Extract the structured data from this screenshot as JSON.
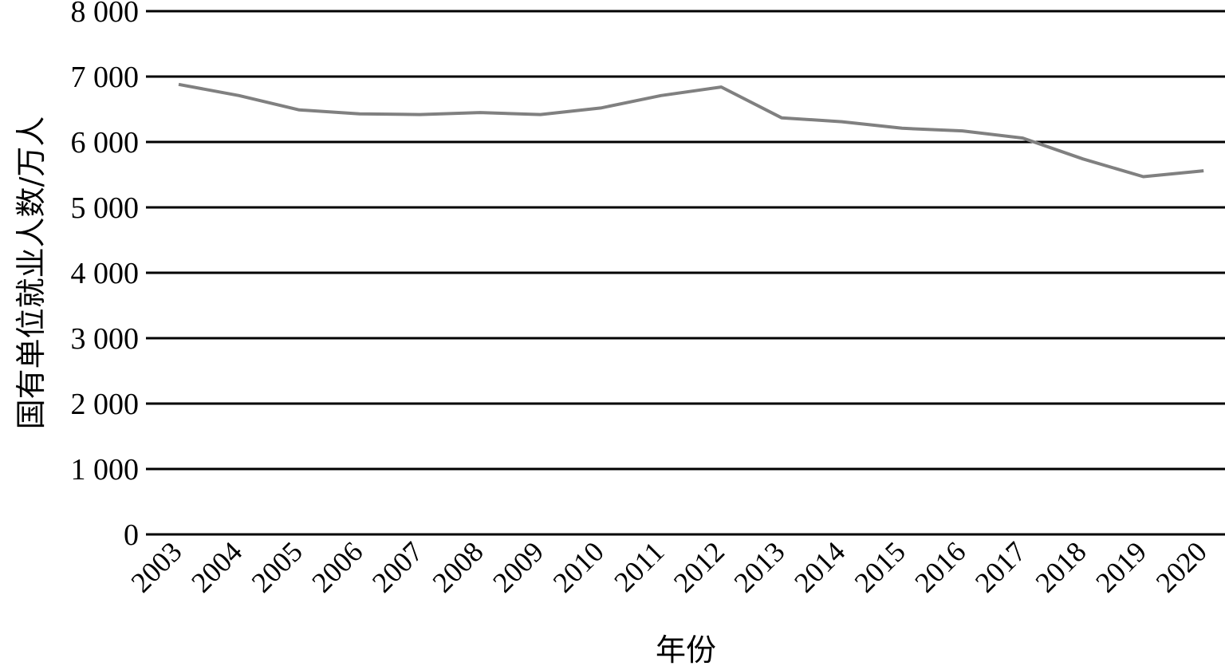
{
  "chart_data": {
    "type": "line",
    "title": "",
    "xlabel": "年份",
    "ylabel": "国有单位就业人数/万人",
    "ylim": [
      0,
      8000
    ],
    "yticks": [
      0,
      1000,
      2000,
      3000,
      4000,
      5000,
      6000,
      7000,
      8000
    ],
    "ytick_labels": [
      "0",
      "1 000",
      "2 000",
      "3 000",
      "4 000",
      "5 000",
      "6 000",
      "7 000",
      "8 000"
    ],
    "categories": [
      "2003",
      "2004",
      "2005",
      "2006",
      "2007",
      "2008",
      "2009",
      "2010",
      "2011",
      "2012",
      "2013",
      "2014",
      "2015",
      "2016",
      "2017",
      "2018",
      "2019",
      "2020"
    ],
    "series": [
      {
        "values": [
          6880,
          6710,
          6490,
          6430,
          6420,
          6450,
          6420,
          6520,
          6710,
          6840,
          6370,
          6310,
          6210,
          6170,
          6060,
          5740,
          5470,
          5560
        ],
        "color": "#808080"
      }
    ],
    "grid": true,
    "legend": "none"
  }
}
